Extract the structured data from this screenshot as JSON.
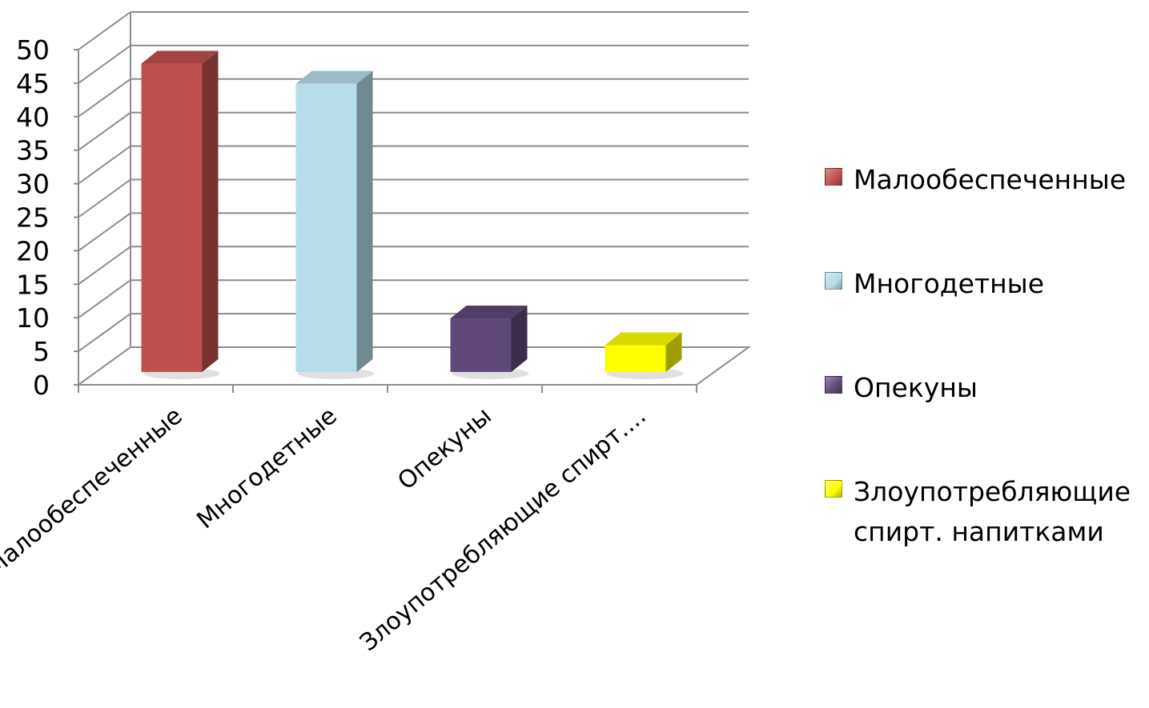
{
  "chart_data": {
    "type": "bar",
    "title": "",
    "xlabel": "",
    "ylabel": "",
    "ylim": [
      0,
      50
    ],
    "yticks": [
      "0",
      "5",
      "10",
      "15",
      "20",
      "25",
      "30",
      "35",
      "40",
      "45",
      "50"
    ],
    "categories": [
      "Малообеспеченные",
      "Многодетные",
      "Опекуны",
      "Злоупотребляющие спирт...."
    ],
    "values": [
      46,
      43,
      8,
      4
    ],
    "colors": [
      "#c0504d",
      "#b7dde8",
      "#5f497a",
      "#ffff00"
    ],
    "legend_position": "right",
    "legend": [
      "Малообеспеченные",
      "Многодетные",
      "Опекуны",
      "Злоупотребляющие\nспирт. напитками"
    ],
    "grid": true,
    "style": "3d-column"
  }
}
